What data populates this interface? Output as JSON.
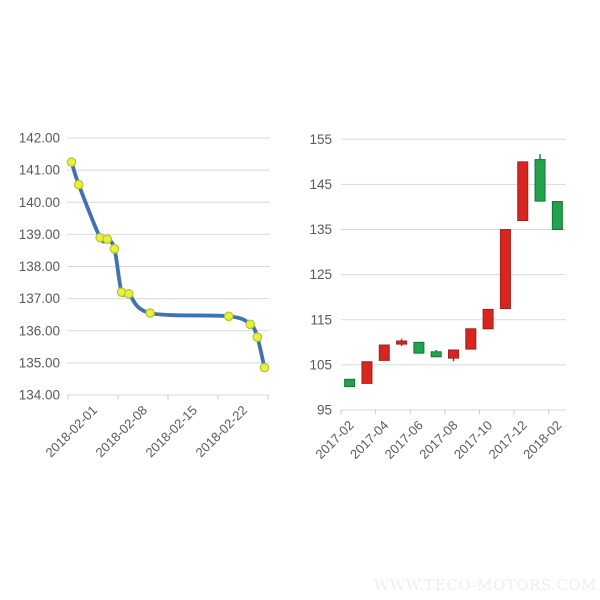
{
  "page": {
    "background": "#FFFFFF"
  },
  "watermark": {
    "text": "WWW.TECO-MOTORS.COM",
    "color": "#EFEDED"
  },
  "styles": {
    "grid_color": "#D9D9D9",
    "tick_color": "#C9C9C9",
    "axis_text_color": "#595959"
  },
  "chart_data": [
    {
      "type": "line",
      "title": "",
      "legend": "none",
      "grid": true,
      "smooth": true,
      "x": [
        "2018-02-01",
        "2018-02-02",
        "2018-02-05",
        "2018-02-06",
        "2018-02-07",
        "2018-02-08",
        "2018-02-09",
        "2018-02-12",
        "2018-02-23",
        "2018-02-26",
        "2018-02-27",
        "2018-02-28"
      ],
      "x_day_of_month": [
        1,
        2,
        5,
        6,
        7,
        8,
        9,
        12,
        23,
        26,
        27,
        28
      ],
      "values": [
        141.25,
        140.55,
        138.9,
        138.85,
        138.55,
        137.2,
        137.15,
        136.55,
        136.45,
        136.2,
        135.8,
        134.85
      ],
      "ylim": [
        134,
        142
      ],
      "ytick_labels": [
        "134.00",
        "135.00",
        "136.00",
        "137.00",
        "138.00",
        "139.00",
        "140.00",
        "141.00",
        "142.00"
      ],
      "xtick_labels": [
        "2018-02-01",
        "2018-02-08",
        "2018-02-15",
        "2018-02-22"
      ],
      "x_axis_range_days": [
        1,
        29
      ],
      "line_color": "#4170B4",
      "marker_fill": "#E7EF3F",
      "marker_stroke": "#B3C62B"
    },
    {
      "type": "candlestick",
      "title": "",
      "legend": "none",
      "grid": true,
      "categories": [
        "2017-02",
        "2017-03",
        "2017-04",
        "2017-05",
        "2017-06",
        "2017-07",
        "2017-08",
        "2017-09",
        "2017-10",
        "2017-11",
        "2017-12",
        "2018-01",
        "2018-02"
      ],
      "ohlc": [
        {
          "date": "2017-02",
          "open": 101.8,
          "high": 101.8,
          "low": 100.2,
          "close": 100.2
        },
        {
          "date": "2017-03",
          "open": 100.9,
          "high": 105.7,
          "low": 100.9,
          "close": 105.7
        },
        {
          "date": "2017-04",
          "open": 106.0,
          "high": 109.4,
          "low": 106.0,
          "close": 109.4
        },
        {
          "date": "2017-05",
          "open": 109.6,
          "high": 110.8,
          "low": 109.2,
          "close": 110.3
        },
        {
          "date": "2017-06",
          "open": 110.0,
          "high": 110.0,
          "low": 107.6,
          "close": 107.6
        },
        {
          "date": "2017-07",
          "open": 107.9,
          "high": 108.3,
          "low": 106.8,
          "close": 106.8
        },
        {
          "date": "2017-08",
          "open": 106.5,
          "high": 108.3,
          "low": 105.8,
          "close": 108.3
        },
        {
          "date": "2017-09",
          "open": 108.5,
          "high": 113.0,
          "low": 108.5,
          "close": 113.0
        },
        {
          "date": "2017-10",
          "open": 113.0,
          "high": 117.3,
          "low": 113.0,
          "close": 117.3
        },
        {
          "date": "2017-11",
          "open": 117.5,
          "high": 135.0,
          "low": 117.5,
          "close": 135.0
        },
        {
          "date": "2017-12",
          "open": 137.0,
          "high": 150.0,
          "low": 137.0,
          "close": 150.0
        },
        {
          "date": "2018-01",
          "open": 150.5,
          "high": 151.7,
          "low": 141.3,
          "close": 141.3
        },
        {
          "date": "2018-02",
          "open": 141.2,
          "high": 141.2,
          "low": 135.0,
          "close": 135.0
        }
      ],
      "ylim": [
        95,
        155
      ],
      "ytick_labels": [
        "95",
        "105",
        "115",
        "125",
        "135",
        "145",
        "155"
      ],
      "xtick_labels": [
        "2017-02",
        "2017-04",
        "2017-06",
        "2017-08",
        "2017-10",
        "2017-12",
        "2018-02"
      ],
      "up_color": "#D9251F",
      "up_stroke": "#A3201C",
      "down_color": "#22A24C",
      "down_stroke": "#117536",
      "color_convention": "red-up-green-down"
    }
  ]
}
